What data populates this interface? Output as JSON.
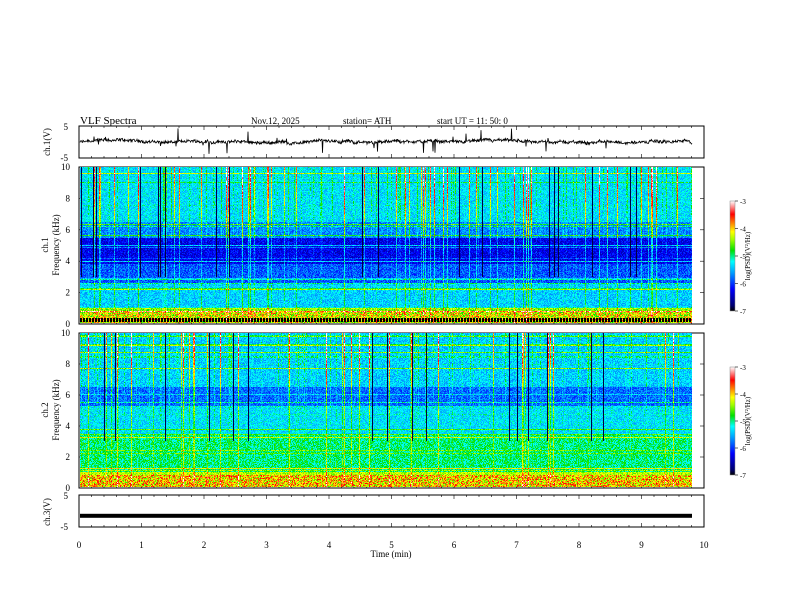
{
  "header": {
    "title": "VLF  Spectra",
    "date": "Nov.12, 2025",
    "station": "station= ATH",
    "start": "start  UT  =   11: 50: 0"
  },
  "chart_data": [
    {
      "type": "line",
      "panel": "ch1-waveform",
      "ylabel": "ch.1(V)",
      "ylim": [
        -5,
        5
      ],
      "yticks": [
        "5",
        "-5"
      ],
      "xlim": [
        0,
        10
      ],
      "baseline": 0,
      "noise_amplitude": 1.5
    },
    {
      "type": "heatmap",
      "panel": "ch1-spectrogram",
      "label": "ch.1",
      "ylabel": "Frequency  (kHz)",
      "ylim": [
        0,
        10
      ],
      "yticks": [
        "0",
        "2",
        "4",
        "6",
        "8",
        "10"
      ],
      "xlim": [
        0,
        9.85
      ],
      "colorbar": {
        "label": "log(PSD)(V²/Hz)",
        "range": [
          -7,
          -3
        ],
        "ticks": [
          "-3",
          "-4",
          "-5",
          "-6",
          "-7"
        ]
      }
    },
    {
      "type": "heatmap",
      "panel": "ch2-spectrogram",
      "label": "ch.2",
      "ylabel": "Frequency  (kHz)",
      "ylim": [
        0,
        10
      ],
      "yticks": [
        "0",
        "2",
        "4",
        "6",
        "8",
        "10"
      ],
      "xlim": [
        0,
        9.85
      ],
      "colorbar": {
        "label": "log(PSD)(V²/Hz)",
        "range": [
          -7,
          -3
        ],
        "ticks": [
          "-3",
          "-4",
          "-5",
          "-6",
          "-7"
        ]
      }
    },
    {
      "type": "line",
      "panel": "ch3-waveform",
      "ylabel": "ch.3(V)",
      "ylim": [
        -5,
        5
      ],
      "yticks": [
        "5",
        "-5"
      ],
      "xlim": [
        0,
        10
      ],
      "baseline": -1.5
    }
  ],
  "xaxis": {
    "label": "Time  (min)",
    "ticks": [
      "0",
      "1",
      "2",
      "3",
      "4",
      "5",
      "6",
      "7",
      "8",
      "9",
      "10"
    ],
    "range": [
      0,
      10
    ]
  }
}
